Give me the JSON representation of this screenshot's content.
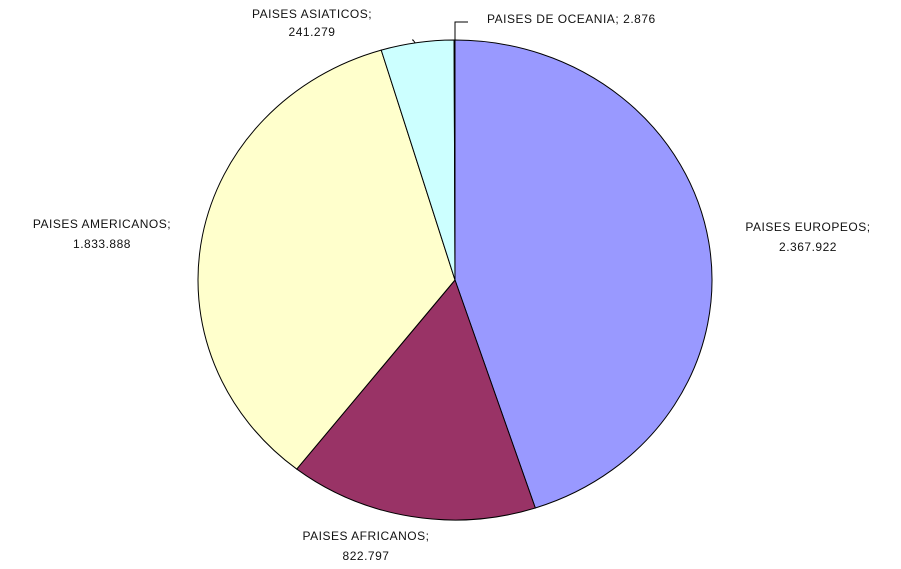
{
  "chart_data": {
    "type": "pie",
    "categories": [
      "PAISES EUROPEOS;",
      "PAISES AFRICANOS;",
      "PAISES AMERICANOS;",
      "PAISES ASIATICOS;",
      "PAISES DE OCEANIA;"
    ],
    "values": [
      2367922,
      822797,
      1833888,
      241279,
      2876
    ],
    "value_labels": [
      "2.367.922",
      "822.797",
      "1.833.888",
      "241.279",
      "2.876"
    ],
    "colors": [
      "#9999ff",
      "#993366",
      "#ffffcc",
      "#ccffff",
      "#660066"
    ]
  }
}
